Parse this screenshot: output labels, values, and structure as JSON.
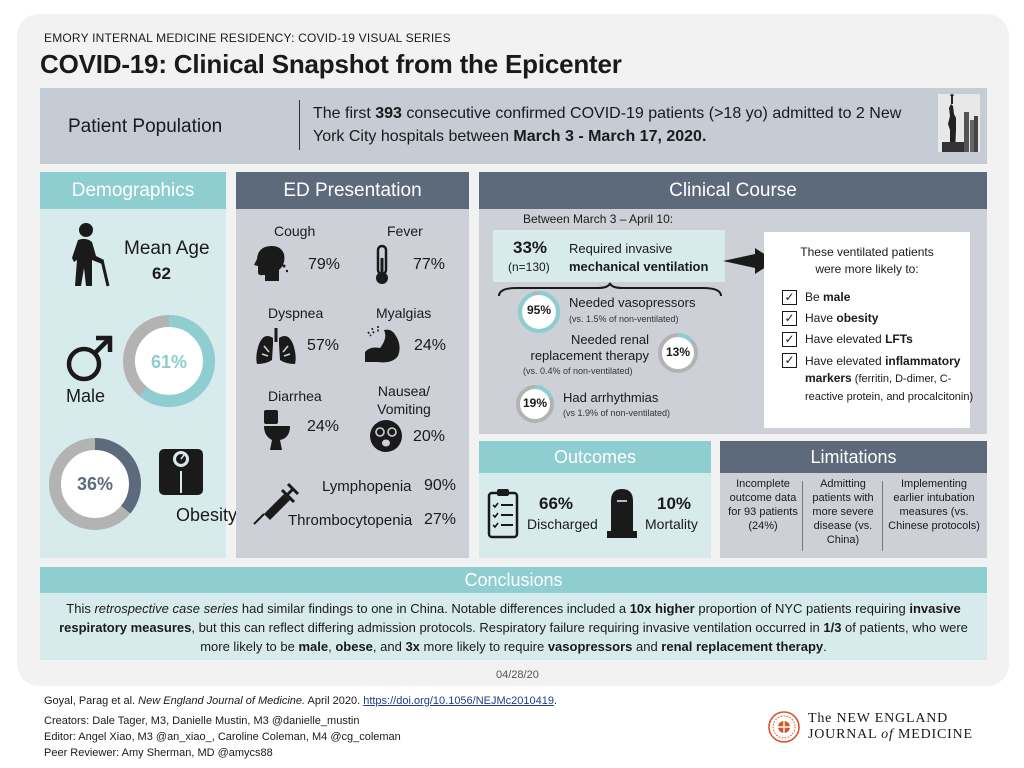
{
  "header": {
    "series": "EMORY INTERNAL MEDICINE RESIDENCY: COVID-19 VISUAL SERIES",
    "title": "COVID-19: Clinical Snapshot from the Epicenter"
  },
  "patient_population": {
    "label": "Patient Population",
    "pre": "The first ",
    "count": "393",
    "mid": " consecutive confirmed COVID-19 patients (>18 yo) admitted to 2 New York City hospitals between ",
    "dates": "March 3 - March 17, 2020."
  },
  "demographics": {
    "header": "Demographics",
    "mean_age_label": "Mean Age",
    "mean_age_value": "62",
    "male_label": "Male",
    "male_pct": "61%",
    "male_fraction": 0.61,
    "obesity_label": "Obesity",
    "obesity_pct": "36%",
    "obesity_fraction": 0.36
  },
  "ed_presentation": {
    "header": "ED Presentation",
    "items": [
      {
        "label": "Cough",
        "pct": "79%",
        "icon": "cough-icon"
      },
      {
        "label": "Fever",
        "pct": "77%",
        "icon": "thermometer-icon"
      },
      {
        "label": "Dyspnea",
        "pct": "57%",
        "icon": "lungs-icon"
      },
      {
        "label": "Myalgias",
        "pct": "24%",
        "icon": "muscle-icon"
      },
      {
        "label": "Diarrhea",
        "pct": "24%",
        "icon": "toilet-icon"
      },
      {
        "label": "Nausea/ Vomiting",
        "pct": "20%",
        "icon": "nausea-face-icon"
      }
    ],
    "labs": [
      {
        "label": "Lymphopenia",
        "pct": "90%"
      },
      {
        "label": "Thrombocytopenia",
        "pct": "27%"
      }
    ]
  },
  "clinical_course": {
    "header": "Clinical Course",
    "period": "Between March 3 – April 10:",
    "ventilation": {
      "pct": "33%",
      "n": "(n=130)",
      "text1": "Required invasive",
      "text2": "mechanical ventilation"
    },
    "vasopressors": {
      "pct": "95%",
      "fraction": 0.95,
      "label": "Needed vasopressors",
      "compare": "(vs. 1.5% of non-ventilated)"
    },
    "renal": {
      "pct": "13%",
      "fraction": 0.13,
      "label1": "Needed renal",
      "label2": "replacement therapy",
      "compare": "(vs. 0.4% of non-ventilated)"
    },
    "arrhythmias": {
      "pct": "19%",
      "fraction": 0.19,
      "label": "Had arrhythmias",
      "compare": "(vs 1.9% of non-ventilated)"
    },
    "ventilated_box": {
      "intro1": "These ventilated patients",
      "intro2": "were more likely to:",
      "items": [
        {
          "pre": "Be ",
          "bold": "male",
          "post": ""
        },
        {
          "pre": "Have ",
          "bold": "obesity",
          "post": ""
        },
        {
          "pre": "Have elevated ",
          "bold": "LFTs",
          "post": ""
        },
        {
          "pre": "Have elevated ",
          "bold": "inflammatory markers",
          "post": " (ferritin, D-dimer, C-reactive protein, and procalcitonin)"
        }
      ]
    }
  },
  "outcomes": {
    "header": "Outcomes",
    "discharged_pct": "66%",
    "discharged_label": "Discharged",
    "mortality_pct": "10%",
    "mortality_label": "Mortality"
  },
  "limitations": {
    "header": "Limitations",
    "items": [
      "Incomplete outcome data for 93 patients (24%)",
      "Admitting patients with more severe disease (vs. China)",
      "Implementing earlier intubation measures (vs. Chinese protocols)"
    ]
  },
  "conclusions": {
    "header": "Conclusions",
    "p1": "This ",
    "p1_em": "retrospective case series",
    "p2": " had similar findings to one in China. Notable differences included a ",
    "p2_b": "10x higher",
    "p3": " proportion of NYC patients requiring ",
    "p3_b": "invasive respiratory measures",
    "p4": ", but this can reflect differing admission protocols. Respiratory failure requiring invasive ventilation occurred in ",
    "p4_b": "1/3",
    "p5": " of patients, who were more likely to be ",
    "p5_b1": "male",
    "p5_c": ", ",
    "p5_b2": "obese",
    "p5_d": ", and ",
    "p5_b3": "3x",
    "p5_e": " more likely to require ",
    "p5_b4": "vasopressors",
    "p5_f": " and ",
    "p5_b5": "renal replacement therapy",
    "p5_g": "."
  },
  "date": "04/28/20",
  "footer": {
    "citation_pre": "Goyal, Parag et al. ",
    "citation_journal": "New England Journal of Medicine.",
    "citation_post": " April 2020. ",
    "doi": "https://doi.org/10.1056/NEJMc2010419",
    "doi_end": ".",
    "creators": "Creators: Dale Tager, M3, Danielle Mustin, M3 @danielle_mustin",
    "editor": "Editor: Angel Xiao, M3 @an_xiao_, Caroline Coleman, M4 @cg_coleman",
    "reviewer": "Peer Reviewer: Amy Sherman, MD @amycs88"
  },
  "nejm": {
    "line1": "The NEW ENGLAND",
    "line2_a": "JOURNAL ",
    "line2_of": "of",
    "line2_b": " MEDICINE"
  },
  "colors": {
    "teal": "#8ecdd0",
    "slate": "#5c6a7c",
    "ring_gray": "#b3b3b3",
    "nejm_red": "#d9532c"
  }
}
